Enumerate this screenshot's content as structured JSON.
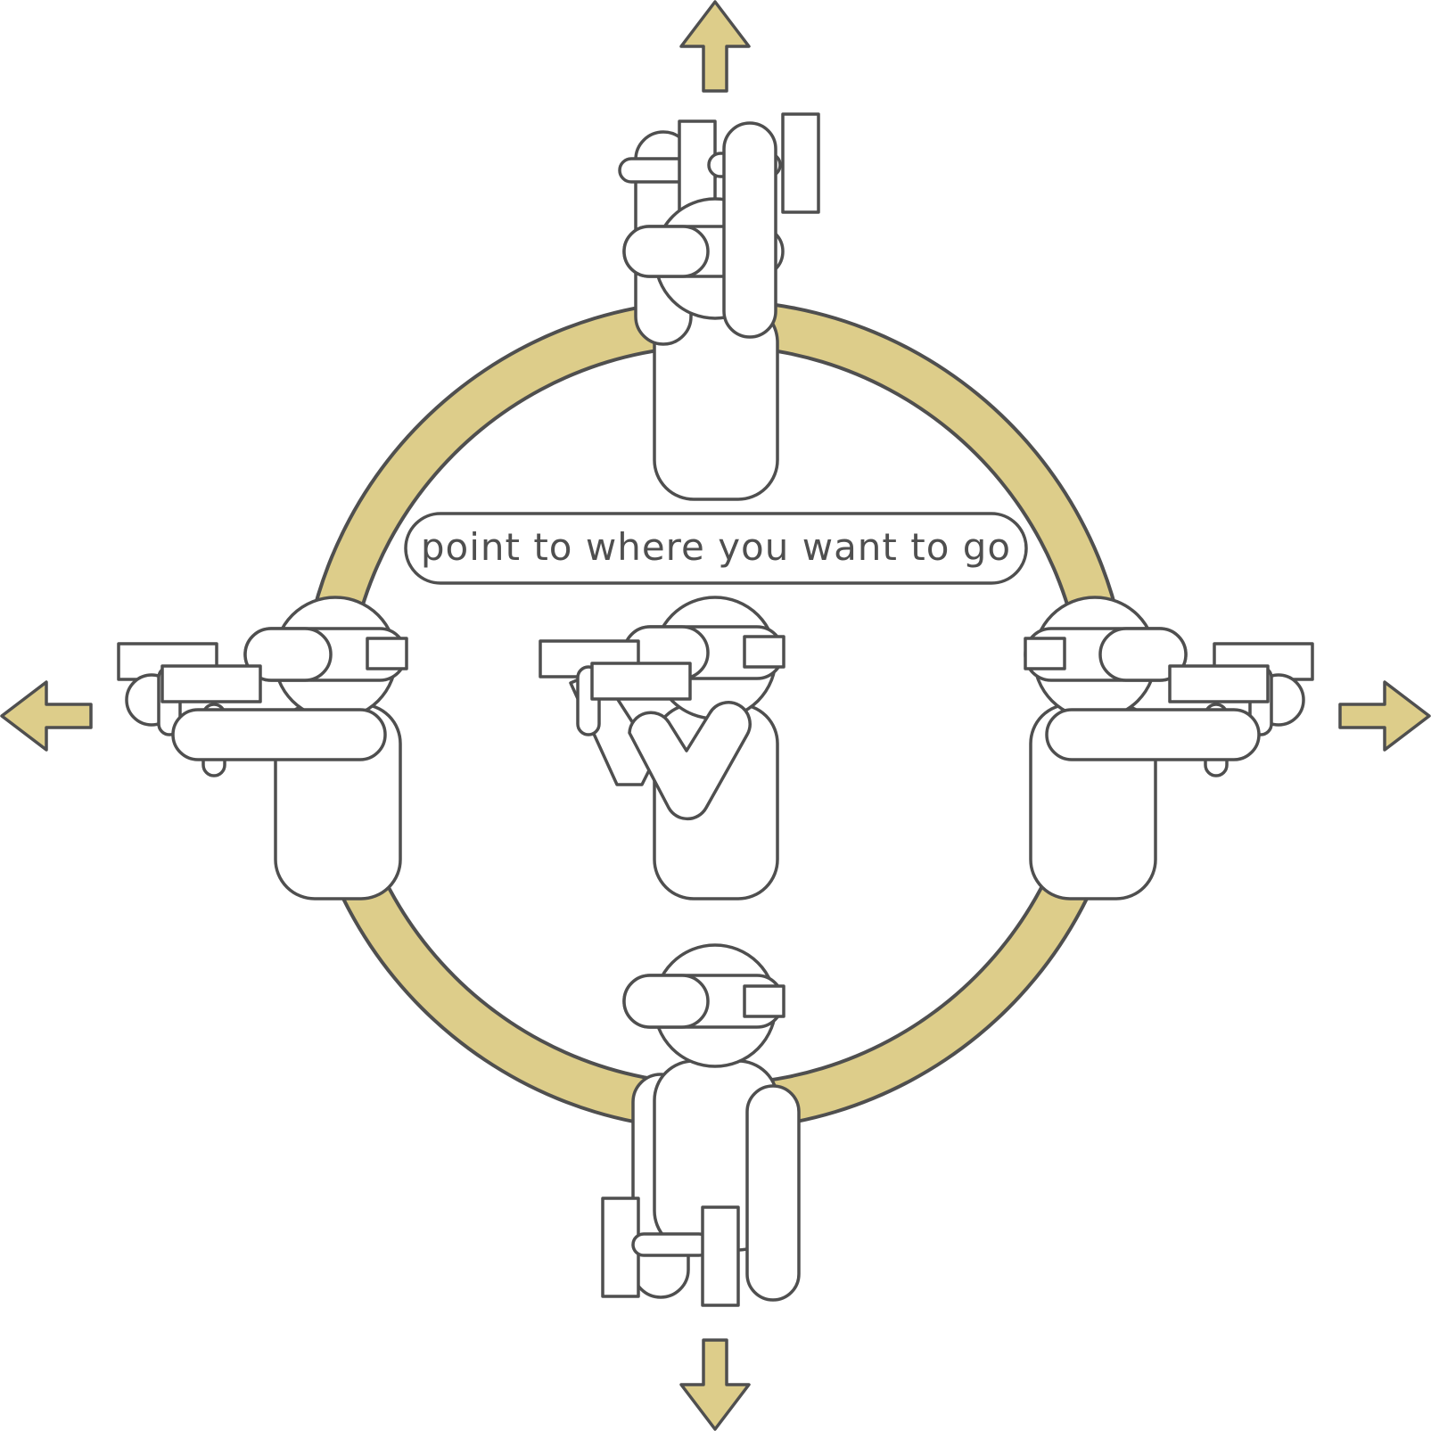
{
  "caption": "point to where you want to go",
  "colors": {
    "ring_fill": "#ddcd8a",
    "arrow_fill": "#ddcd8a",
    "outline": "#4f4f4f",
    "figure_fill": "#ffffff",
    "background": "#ffffff"
  },
  "arrows": [
    "arrow-up",
    "arrow-down",
    "arrow-left",
    "arrow-right"
  ],
  "figures": [
    "figure-pointing-up",
    "figure-pointing-left",
    "figure-pointing-center",
    "figure-pointing-right",
    "figure-pointing-down"
  ]
}
